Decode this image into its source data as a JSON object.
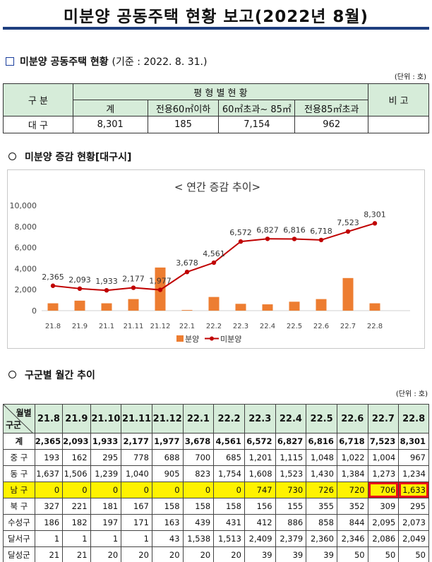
{
  "title": "미분양 공동주택 현황 보고(2022년 8월)",
  "section1": {
    "heading": "미분양 공동주택 현황",
    "basis": "(기준 : 2022. 8. 31.)",
    "unit": "(단위 : 호)",
    "table": {
      "col_group": "구 분",
      "type_group": "평 형 별 현 황",
      "remarks": "비 고",
      "columns": [
        "계",
        "전용60㎡이하",
        "60㎡초과~ 85㎡",
        "전용85㎡초과"
      ],
      "row": {
        "label": "대 구",
        "values": [
          "8,301",
          "185",
          "7,154",
          "962"
        ],
        "remark": ""
      }
    }
  },
  "section2": {
    "heading": "미분양 증감 현황[대구시]"
  },
  "chart_data": {
    "type": "bar+line",
    "title": "< 연간 증감 추이>",
    "categories": [
      "21.8",
      "21.9",
      "21.1",
      "21.11",
      "21.12",
      "22.1",
      "22.2",
      "22.3",
      "22.4",
      "22.5",
      "22.6",
      "22.7",
      "22.8"
    ],
    "series": [
      {
        "name": "분양",
        "type": "bar",
        "color": "#ed7d31",
        "values": [
          700,
          950,
          700,
          1100,
          4100,
          60,
          1300,
          650,
          600,
          850,
          1100,
          3100,
          700
        ]
      },
      {
        "name": "미분양",
        "type": "line",
        "color": "#c00000",
        "values": [
          2365,
          2093,
          1933,
          2177,
          1977,
          3678,
          4561,
          6572,
          6827,
          6816,
          6718,
          7523,
          8301
        ]
      }
    ],
    "data_labels": [
      "2,365",
      "2,093",
      "1,933",
      "2,177",
      "1,977",
      "3,678",
      "4,561",
      "6,572",
      "6,827",
      "6,816",
      "6,718",
      "7,523",
      "8,301"
    ],
    "yticks": [
      "10,000",
      "8,000",
      "6,000",
      "4,000",
      "2,000",
      "0"
    ],
    "ylim": [
      0,
      10000
    ],
    "legend_position": "bottom",
    "grid": false
  },
  "section3": {
    "heading": "구군별 월간 추이",
    "unit": "(단위 : 호)",
    "corner_top": "월별",
    "corner_bottom": "구군",
    "months": [
      "21.8",
      "21.9",
      "21.10",
      "21.11",
      "21.12",
      "22.1",
      "22.2",
      "22.3",
      "22.4",
      "22.5",
      "22.6",
      "22.7",
      "22.8"
    ],
    "rows": [
      {
        "label": "계",
        "values": [
          "2,365",
          "2,093",
          "1,933",
          "2,177",
          "1,977",
          "3,678",
          "4,561",
          "6,572",
          "6,827",
          "6,816",
          "6,718",
          "7,523",
          "8,301"
        ]
      },
      {
        "label": "중 구",
        "values": [
          "193",
          "162",
          "295",
          "778",
          "688",
          "700",
          "685",
          "1,201",
          "1,115",
          "1,048",
          "1,022",
          "1,004",
          "967"
        ]
      },
      {
        "label": "동 구",
        "values": [
          "1,637",
          "1,506",
          "1,239",
          "1,040",
          "905",
          "823",
          "1,754",
          "1,608",
          "1,523",
          "1,430",
          "1,384",
          "1,273",
          "1,234"
        ]
      },
      {
        "label": "남 구",
        "values": [
          "0",
          "0",
          "0",
          "0",
          "0",
          "0",
          "0",
          "747",
          "730",
          "726",
          "720",
          "706",
          "1,633"
        ]
      },
      {
        "label": "북 구",
        "values": [
          "327",
          "221",
          "181",
          "167",
          "158",
          "158",
          "158",
          "156",
          "155",
          "355",
          "352",
          "309",
          "295"
        ]
      },
      {
        "label": "수성구",
        "values": [
          "186",
          "182",
          "197",
          "171",
          "163",
          "439",
          "431",
          "412",
          "886",
          "858",
          "844",
          "2,095",
          "2,073"
        ]
      },
      {
        "label": "달서구",
        "values": [
          "1",
          "1",
          "1",
          "1",
          "43",
          "1,538",
          "1,513",
          "2,409",
          "2,379",
          "2,360",
          "2,346",
          "2,086",
          "2,049"
        ]
      },
      {
        "label": "달성군",
        "values": [
          "21",
          "21",
          "20",
          "20",
          "20",
          "20",
          "20",
          "39",
          "39",
          "39",
          "50",
          "50",
          "50"
        ]
      }
    ],
    "highlight_row": "남 구",
    "highlight_color": "#fff200",
    "outline_color": "#e8101b"
  }
}
